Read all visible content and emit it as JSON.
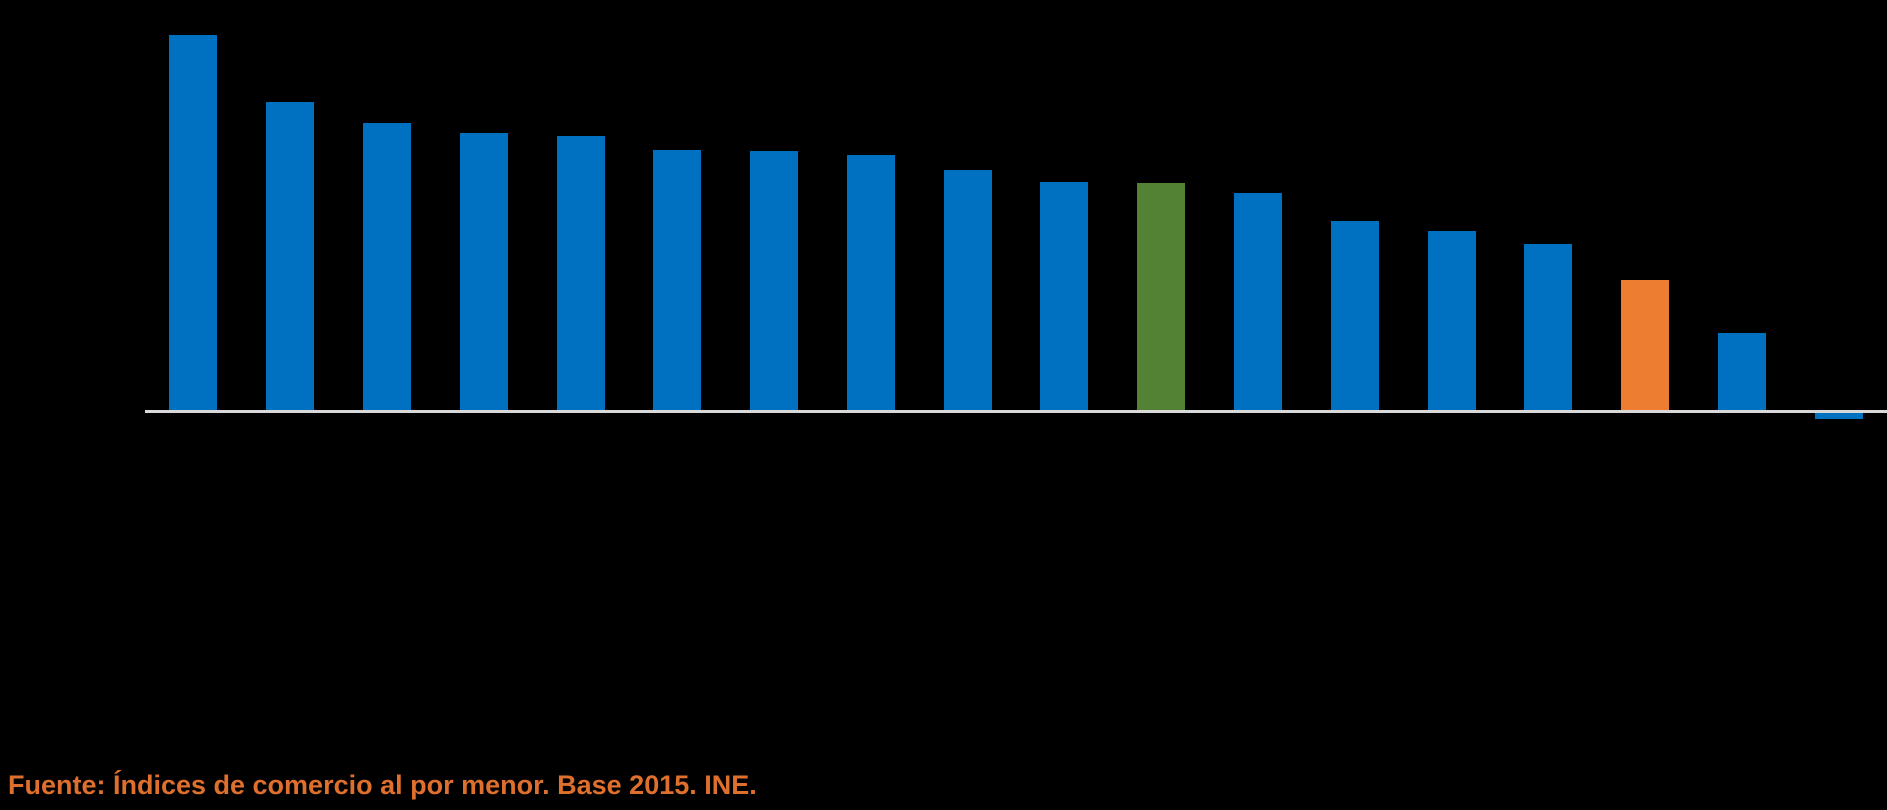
{
  "page": {
    "background_color": "#000000"
  },
  "source_note": {
    "text": "Fuente: Índices de comercio al por menor. Base 2015. INE.",
    "color": "#DE6F2C"
  },
  "chart_data": {
    "type": "bar",
    "title": "",
    "xlabel": "",
    "ylabel": "",
    "note": "Chart rendered on a black background: any title, axis tick labels, category labels, legend or data labels are not visible in the screenshot (black text on black). 18 vertical bars sorted in descending order; the 11th bar is green, the 16th is orange, all others blue; the 18th (last) bar is slightly negative, dipping below the zero baseline.",
    "units": "bar heights estimated in screenshot pixels relative to the zero baseline (no numeric axis visible)",
    "n_bars": 18,
    "values": [
      377,
      310,
      289,
      279,
      276,
      262,
      261,
      257,
      242,
      230,
      229,
      219,
      191,
      181,
      168,
      132,
      79,
      -7
    ],
    "bar_colors": [
      "blue",
      "blue",
      "blue",
      "blue",
      "blue",
      "blue",
      "blue",
      "blue",
      "blue",
      "blue",
      "green",
      "blue",
      "blue",
      "blue",
      "blue",
      "orange",
      "blue",
      "blue"
    ],
    "palette": {
      "blue": "#0070C0",
      "green": "#548235",
      "orange": "#ED7D31"
    },
    "baseline_color": "#D9D9D9",
    "grid": false,
    "legend": null
  }
}
